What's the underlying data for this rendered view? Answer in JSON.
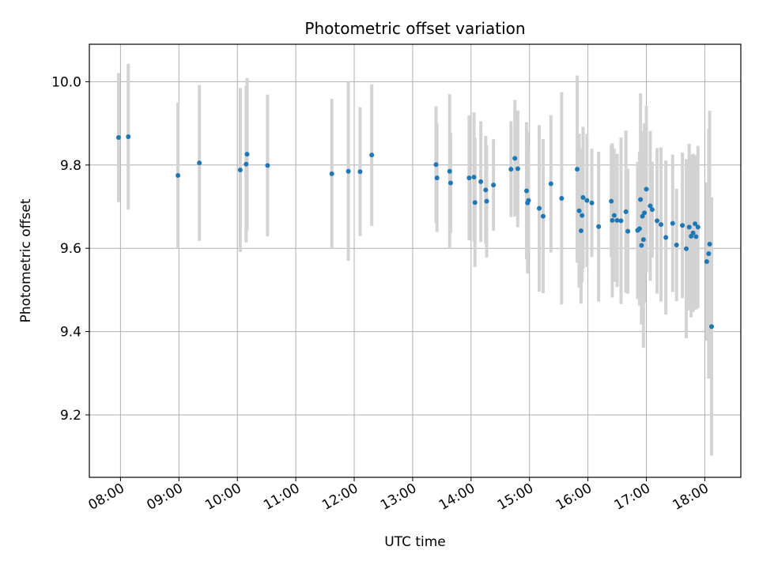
{
  "chart_data": {
    "type": "scatter",
    "title": "Photometric offset variation",
    "xlabel": "UTC time",
    "ylabel": "Photometric offset",
    "x_tick_labels": [
      "08:00",
      "09:00",
      "10:00",
      "11:00",
      "12:00",
      "13:00",
      "14:00",
      "15:00",
      "16:00",
      "17:00",
      "18:00"
    ],
    "y_tick_labels": [
      "9.2",
      "9.4",
      "9.6",
      "9.8",
      "10.0"
    ],
    "ylim": [
      9.05,
      10.09
    ],
    "xlim": [
      "07:28",
      "18:37"
    ],
    "grid": true,
    "colors": {
      "point": "#1f77b4",
      "errorbar": "#d3d3d3",
      "grid": "#b0b0b0"
    },
    "series": [
      {
        "x": [
          "07:58",
          "08:08",
          "08:59",
          "09:21",
          "10:03",
          "10:09",
          "10:10",
          "10:31",
          "11:37",
          "11:54",
          "12:06",
          "12:18",
          "13:24",
          "13:25",
          "13:38",
          "13:39",
          "13:58",
          "14:03",
          "14:04",
          "14:10",
          "14:15",
          "14:16",
          "14:23",
          "14:41",
          "14:45",
          "14:48",
          "14:57",
          "14:58",
          "14:59",
          "15:10",
          "15:14",
          "15:22",
          "15:33",
          "15:49",
          "15:51",
          "15:53",
          "15:54",
          "15:55",
          "15:59",
          "16:04",
          "16:11",
          "16:24",
          "16:25",
          "16:27",
          "16:30",
          "16:34",
          "16:39",
          "16:41",
          "16:51",
          "16:53",
          "16:54",
          "16:55",
          "16:56",
          "16:57",
          "16:58",
          "17:00",
          "17:04",
          "17:06",
          "17:11",
          "17:15",
          "17:20",
          "17:27",
          "17:31",
          "17:37",
          "17:41",
          "17:44",
          "17:46",
          "17:48",
          "17:50",
          "17:51",
          "17:53",
          "18:02",
          "18:04",
          "18:05",
          "18:07"
        ],
        "y": [
          9.866,
          9.868,
          9.775,
          9.805,
          9.788,
          9.802,
          9.826,
          9.799,
          9.779,
          9.785,
          9.784,
          9.824,
          9.801,
          9.769,
          9.785,
          9.757,
          9.769,
          9.771,
          9.71,
          9.76,
          9.74,
          9.713,
          9.752,
          9.79,
          9.816,
          9.791,
          9.738,
          9.709,
          9.715,
          9.696,
          9.677,
          9.755,
          9.72,
          9.79,
          9.69,
          9.642,
          9.679,
          9.722,
          9.715,
          9.709,
          9.652,
          9.713,
          9.667,
          9.679,
          9.667,
          9.666,
          9.688,
          9.641,
          9.643,
          9.647,
          9.717,
          9.607,
          9.677,
          9.621,
          9.685,
          9.742,
          9.702,
          9.693,
          9.666,
          9.657,
          9.626,
          9.66,
          9.608,
          9.655,
          9.599,
          9.651,
          9.629,
          9.637,
          9.659,
          9.628,
          9.651,
          9.568,
          9.587,
          9.61,
          9.412
        ],
        "yerr": [
          0.155,
          0.175,
          0.175,
          0.187,
          0.197,
          0.188,
          0.183,
          0.17,
          0.18,
          0.215,
          0.155,
          0.17,
          0.14,
          0.13,
          0.185,
          0.12,
          0.15,
          0.155,
          0.155,
          0.145,
          0.13,
          0.135,
          0.11,
          0.115,
          0.14,
          0.14,
          0.165,
          0.17,
          0.12,
          0.2,
          0.185,
          0.165,
          0.255,
          0.225,
          0.185,
          0.175,
          0.16,
          0.17,
          0.16,
          0.13,
          0.18,
          0.135,
          0.185,
          0.16,
          0.16,
          0.2,
          0.195,
          0.15,
          0.165,
          0.185,
          0.255,
          0.19,
          0.19,
          0.26,
          0.215,
          0.2,
          0.18,
          0.115,
          0.175,
          0.185,
          0.185,
          0.165,
          0.135,
          0.175,
          0.215,
          0.2,
          0.195,
          0.19,
          0.165,
          0.175,
          0.195,
          0.19,
          0.3,
          0.32,
          0.31
        ]
      }
    ]
  }
}
